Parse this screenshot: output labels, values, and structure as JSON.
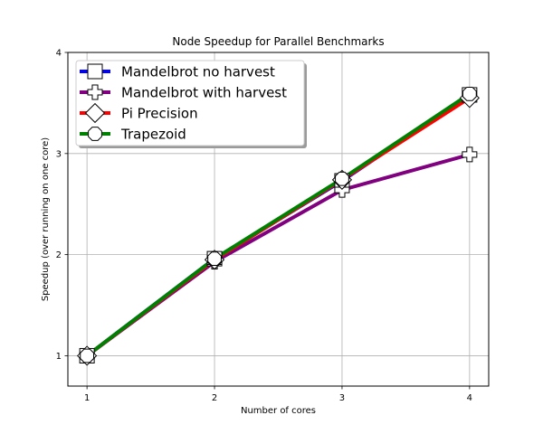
{
  "chart_data": {
    "type": "line",
    "title": "Node Speedup for Parallel Benchmarks",
    "xlabel": "Number of cores",
    "ylabel": "Speedup (over running on one core)",
    "x": [
      1,
      2,
      3,
      4
    ],
    "xlim": [
      0.85,
      4.15
    ],
    "ylim": [
      0.7,
      4.0
    ],
    "xticks": [
      1,
      2,
      3,
      4
    ],
    "yticks": [
      1,
      2,
      3,
      4
    ],
    "grid": true,
    "legend_position": "top-left",
    "series": [
      {
        "name": "Mandelbrot no harvest",
        "values": [
          1.0,
          1.96,
          2.73,
          3.58
        ],
        "color": "#0000ff",
        "marker": "square"
      },
      {
        "name": "Mandelbrot with harvest",
        "values": [
          1.0,
          1.93,
          2.64,
          2.99
        ],
        "color": "#800080",
        "marker": "plus"
      },
      {
        "name": "Pi Precision",
        "values": [
          1.0,
          1.95,
          2.74,
          3.55
        ],
        "color": "#ff0000",
        "marker": "diamond"
      },
      {
        "name": "Trapezoid",
        "values": [
          1.0,
          1.96,
          2.75,
          3.59
        ],
        "color": "#008000",
        "marker": "octagon"
      }
    ]
  }
}
